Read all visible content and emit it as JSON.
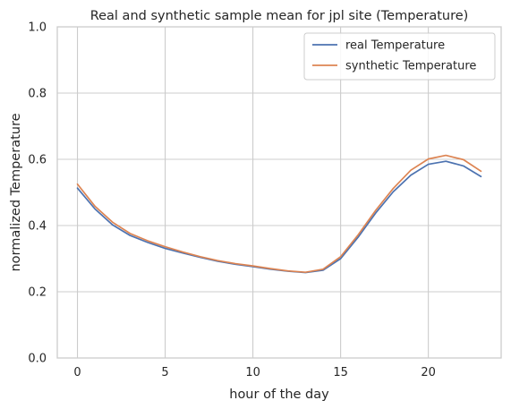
{
  "chart_data": {
    "type": "line",
    "title": "Real and synthetic sample mean for jpl site (Temperature)",
    "xlabel": "hour of the day",
    "ylabel": "normalized Temperature",
    "xlim": [
      -1.15,
      24.15
    ],
    "ylim": [
      0,
      1
    ],
    "xticks": [
      0,
      5,
      10,
      15,
      20
    ],
    "yticks": [
      0.0,
      0.2,
      0.4,
      0.6,
      0.8,
      1.0
    ],
    "xtick_labels": [
      "0",
      "5",
      "10",
      "15",
      "20"
    ],
    "ytick_labels": [
      "0.0",
      "0.2",
      "0.4",
      "0.6",
      "0.8",
      "1.0"
    ],
    "grid": true,
    "legend_position": "top-right",
    "x": [
      0,
      1,
      2,
      3,
      4,
      5,
      6,
      7,
      8,
      9,
      10,
      11,
      12,
      13,
      14,
      15,
      16,
      17,
      18,
      19,
      20,
      21,
      22,
      23
    ],
    "series": [
      {
        "name": "real Temperature",
        "color": "#4c72b0",
        "values": [
          0.513,
          0.45,
          0.402,
          0.37,
          0.349,
          0.331,
          0.317,
          0.304,
          0.292,
          0.283,
          0.276,
          0.268,
          0.262,
          0.258,
          0.265,
          0.3,
          0.365,
          0.438,
          0.502,
          0.552,
          0.585,
          0.594,
          0.58,
          0.548
        ]
      },
      {
        "name": "synthetic Temperature",
        "color": "#dd8452",
        "values": [
          0.525,
          0.458,
          0.41,
          0.376,
          0.354,
          0.336,
          0.32,
          0.306,
          0.294,
          0.285,
          0.278,
          0.27,
          0.263,
          0.259,
          0.268,
          0.306,
          0.372,
          0.446,
          0.512,
          0.567,
          0.601,
          0.612,
          0.599,
          0.564
        ]
      }
    ]
  }
}
